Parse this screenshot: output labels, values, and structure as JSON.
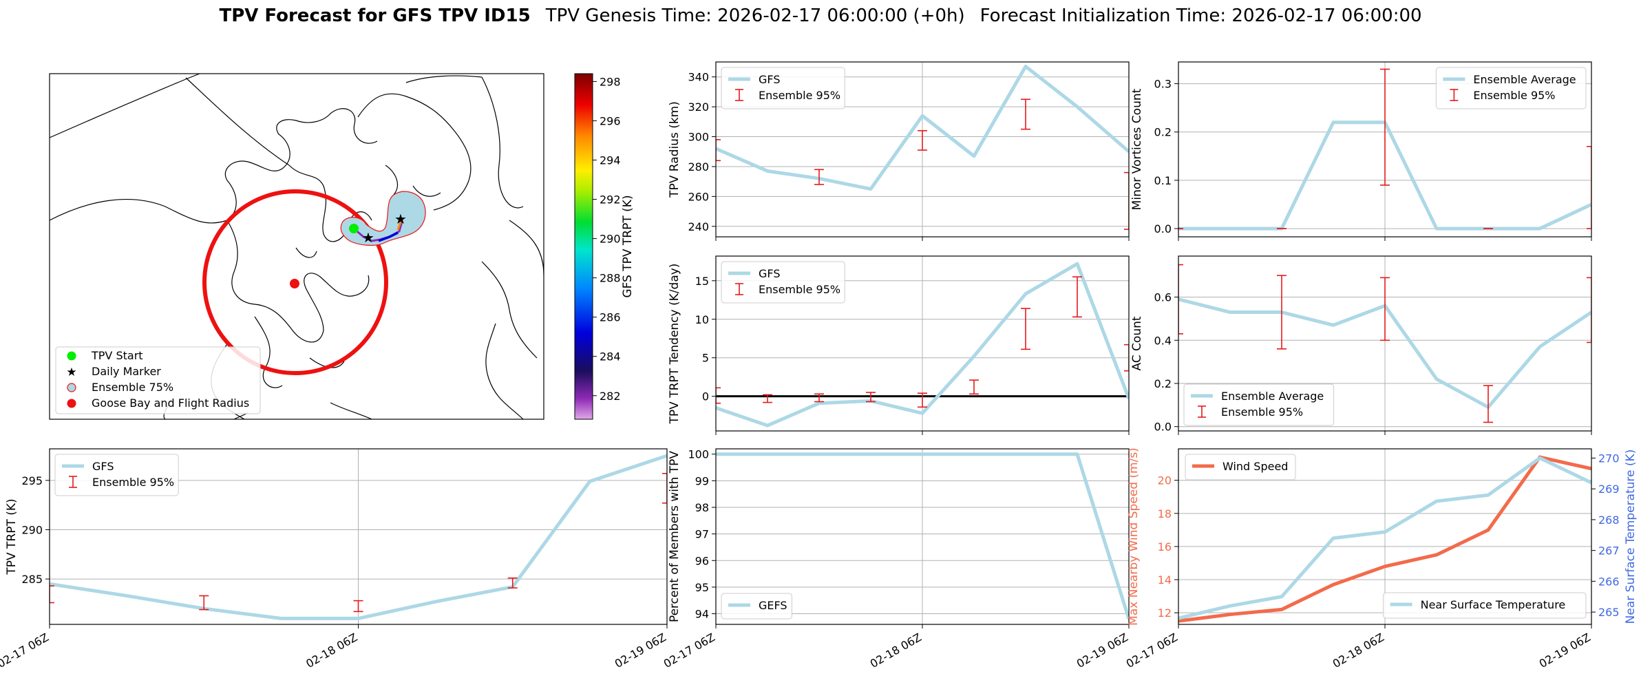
{
  "figure": {
    "title_bold": "TPV Forecast for GFS TPV ID15",
    "title_genesis": "TPV Genesis Time: 2026-02-17 06:00:00 (+0h)",
    "title_init": "Forecast Initialization Time: 2026-02-17 06:00:00"
  },
  "map_panel": {
    "colorbar_label": "GFS TPV TRPT (K)",
    "colorbar_ticks": [
      282,
      284,
      286,
      288,
      290,
      292,
      294,
      296,
      298
    ],
    "colorbar_range": [
      280.8,
      298.4
    ],
    "legend": [
      {
        "label": "TPV Start",
        "color": "#00ee00",
        "marker": "circle"
      },
      {
        "label": "Daily Marker",
        "color": "#ee00ee",
        "marker": "star"
      },
      {
        "label": "Ensemble 75%",
        "color": "#add8e6",
        "marker": "ring"
      },
      {
        "label": "Goose Bay and Flight Radius",
        "color": "#ee1111",
        "marker": "circle"
      }
    ]
  },
  "colors": {
    "gfs_line": "#add8e6",
    "errorbar": "#e41a1c",
    "wind": "#f26b4b",
    "temp_axis": "#4169e1",
    "flight_radius": "#ee1111"
  },
  "chart_data": [
    {
      "id": "trpt",
      "type": "line",
      "ylabel": "TPV TRPT (K)",
      "xlim": [
        0,
        8
      ],
      "ylim": [
        280.4,
        298.2
      ],
      "yticks": [
        285,
        290,
        295
      ],
      "xticks": [
        0,
        4,
        8
      ],
      "xticklabels": [
        "02-17 06Z",
        "02-18 06Z",
        "02-19 06Z"
      ],
      "series": [
        {
          "name": "GFS",
          "x": [
            0,
            1,
            2,
            3,
            4,
            5,
            6,
            7,
            8
          ],
          "y": [
            284.5,
            283.3,
            282.0,
            281.0,
            281.0,
            282.7,
            284.2,
            294.9,
            297.5
          ]
        }
      ],
      "errorbars": [
        {
          "name": "Ensemble 95%",
          "x": [
            0,
            2,
            4,
            6,
            8
          ],
          "low": [
            282.6,
            281.9,
            281.7,
            284.1,
            292.7
          ],
          "high": [
            284.3,
            283.3,
            282.8,
            285.1,
            295.7
          ]
        }
      ],
      "legend": [
        "GFS",
        "Ensemble 95%"
      ],
      "legend_pos": "upper-left"
    },
    {
      "id": "radius",
      "type": "line",
      "ylabel": "TPV Radius (km)",
      "xlim": [
        0,
        8
      ],
      "ylim": [
        233,
        350
      ],
      "yticks": [
        240,
        260,
        280,
        300,
        320,
        340
      ],
      "xticks": [
        0,
        4,
        8
      ],
      "xticklabels": [],
      "series": [
        {
          "name": "GFS",
          "x": [
            0,
            1,
            2,
            3,
            4,
            5,
            6,
            7,
            8
          ],
          "y": [
            292,
            277,
            272,
            265,
            314,
            287,
            347,
            320,
            290
          ]
        }
      ],
      "errorbars": [
        {
          "name": "Ensemble 95%",
          "x": [
            0,
            2,
            4,
            6,
            8
          ],
          "low": [
            284,
            268,
            291,
            305,
            238
          ],
          "high": [
            298,
            278,
            304,
            325,
            276
          ]
        }
      ],
      "legend": [
        "GFS",
        "Ensemble 95%"
      ],
      "legend_pos": "upper-left"
    },
    {
      "id": "tendency",
      "type": "line",
      "ylabel": "TPV TRPT Tendency (K/day)",
      "xlim": [
        0,
        8
      ],
      "ylim": [
        -4.5,
        18.2
      ],
      "yticks": [
        0,
        5,
        10,
        15
      ],
      "xticks": [
        0,
        4,
        8
      ],
      "xticklabels": [],
      "zero_line": true,
      "series": [
        {
          "name": "GFS",
          "x": [
            0,
            1,
            2,
            3,
            4,
            5,
            6,
            7,
            8
          ],
          "y": [
            -1.5,
            -3.8,
            -0.9,
            -0.6,
            -2.2,
            5.2,
            13.3,
            17.2,
            -0.3
          ]
        }
      ],
      "errorbars": [
        {
          "name": "Ensemble 95%",
          "x": [
            0,
            1,
            2,
            3,
            4,
            5,
            6,
            7,
            8
          ],
          "low": [
            -0.9,
            -0.8,
            -0.7,
            -0.7,
            -1.4,
            0.3,
            6.1,
            10.3,
            3.3
          ],
          "high": [
            1.1,
            0.2,
            0.3,
            0.5,
            0.4,
            2.1,
            11.4,
            15.5,
            6.7
          ]
        }
      ],
      "legend": [
        "GFS",
        "Ensemble 95%"
      ],
      "legend_pos": "upper-left"
    },
    {
      "id": "percent",
      "type": "line",
      "ylabel": "Percent of Members with TPV",
      "xlim": [
        0,
        8
      ],
      "ylim": [
        93.6,
        100.2
      ],
      "yticks": [
        94,
        95,
        96,
        97,
        98,
        99,
        100
      ],
      "xticks": [
        0,
        4,
        8
      ],
      "xticklabels": [
        "02-17 06Z",
        "02-18 06Z",
        "02-19 06Z"
      ],
      "series": [
        {
          "name": "GEFS",
          "x": [
            0,
            1,
            2,
            3,
            4,
            5,
            6,
            7,
            8
          ],
          "y": [
            100,
            100,
            100,
            100,
            100,
            100,
            100,
            100,
            93.8
          ]
        }
      ],
      "errorbars": [],
      "legend": [
        "GEFS"
      ],
      "legend_pos": "lower-left"
    },
    {
      "id": "minor",
      "type": "line",
      "ylabel": "Minor Vortices Count",
      "xlim": [
        0,
        8
      ],
      "ylim": [
        -0.017,
        0.345
      ],
      "yticks": [
        0.0,
        0.1,
        0.2,
        0.3
      ],
      "yticklabels": [
        "0.0",
        "0.1",
        "0.2",
        "0.3"
      ],
      "xticks": [
        0,
        4,
        8
      ],
      "xticklabels": [],
      "series": [
        {
          "name": "Ensemble Average",
          "x": [
            0,
            1,
            2,
            3,
            4,
            5,
            6,
            7,
            8
          ],
          "y": [
            0,
            0,
            0,
            0.22,
            0.22,
            0,
            0,
            0,
            0.05
          ]
        }
      ],
      "errorbars": [
        {
          "name": "Ensemble 95%",
          "x": [
            0,
            2,
            4,
            6,
            8
          ],
          "low": [
            0,
            0,
            0.09,
            0,
            0
          ],
          "high": [
            0,
            0,
            0.33,
            0,
            0.17
          ]
        }
      ],
      "legend": [
        "Ensemble Average",
        "Ensemble 95%"
      ],
      "legend_pos": "upper-right"
    },
    {
      "id": "ac",
      "type": "line",
      "ylabel": "AC Count",
      "xlim": [
        0,
        8
      ],
      "ylim": [
        -0.02,
        0.79
      ],
      "yticks": [
        0.0,
        0.2,
        0.4,
        0.6
      ],
      "yticklabels": [
        "0.0",
        "0.2",
        "0.4",
        "0.6"
      ],
      "xticks": [
        0,
        4,
        8
      ],
      "xticklabels": [],
      "series": [
        {
          "name": "Ensemble Average",
          "x": [
            0,
            1,
            2,
            3,
            4,
            5,
            6,
            7,
            8
          ],
          "y": [
            0.59,
            0.53,
            0.53,
            0.47,
            0.56,
            0.22,
            0.09,
            0.37,
            0.53
          ]
        }
      ],
      "errorbars": [
        {
          "name": "Ensemble 95%",
          "x": [
            0,
            2,
            4,
            6,
            8
          ],
          "low": [
            0.43,
            0.36,
            0.4,
            0.02,
            0.39
          ],
          "high": [
            0.75,
            0.7,
            0.69,
            0.19,
            0.69
          ]
        }
      ],
      "legend": [
        "Ensemble Average",
        "Ensemble 95%"
      ],
      "legend_pos": "lower-left"
    },
    {
      "id": "wind",
      "type": "line",
      "ylabel": "Max Nearby Wind Speed (m/s)",
      "y2label": "Near Surface Temperature (K)",
      "xlim": [
        0,
        8
      ],
      "ylim": [
        11.3,
        21.9
      ],
      "yticks": [
        12,
        14,
        16,
        18,
        20
      ],
      "y2lim": [
        264.6,
        270.3
      ],
      "y2ticks": [
        265,
        266,
        267,
        268,
        269,
        270
      ],
      "xticks": [
        0,
        4,
        8
      ],
      "xticklabels": [
        "02-17 06Z",
        "02-18 06Z",
        "02-19 06Z"
      ],
      "series": [
        {
          "name": "Wind Speed",
          "axis": "left",
          "x": [
            0,
            1,
            2,
            3,
            4,
            5,
            6,
            7,
            8
          ],
          "y": [
            11.5,
            11.9,
            12.2,
            13.7,
            14.8,
            15.5,
            17.0,
            21.4,
            20.7
          ]
        },
        {
          "name": "Near Surface Temperature",
          "axis": "right",
          "x": [
            0,
            1,
            2,
            3,
            4,
            5,
            6,
            7,
            8
          ],
          "y": [
            264.8,
            265.2,
            265.5,
            267.4,
            267.6,
            268.6,
            268.8,
            270.0,
            269.2
          ]
        }
      ],
      "legend": [
        "Wind Speed",
        "Near Surface Temperature"
      ]
    }
  ]
}
